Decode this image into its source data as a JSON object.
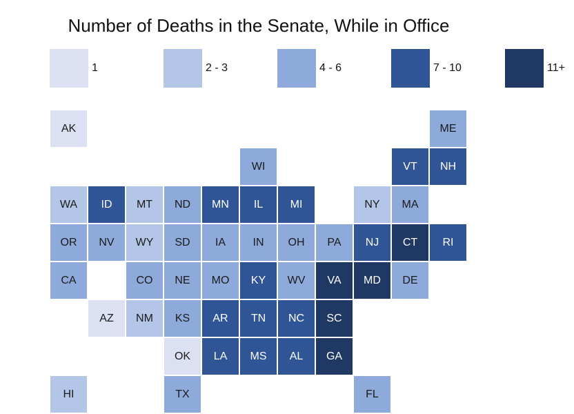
{
  "chart_data": {
    "type": "heatmap",
    "title": "Number of Deaths in the Senate, While in Office",
    "legend": {
      "placement": "top",
      "bins": [
        {
          "label": "1",
          "color": "#dbe1f2"
        },
        {
          "label": "2 - 3",
          "color": "#b4c6e7"
        },
        {
          "label": "4 - 6",
          "color": "#8eaadb"
        },
        {
          "label": "7 - 10",
          "color": "#2f5597"
        },
        {
          "label": "11+",
          "color": "#203864"
        }
      ]
    },
    "states": [
      {
        "abbr": "AK",
        "bin": "1",
        "col": 0,
        "row": 0
      },
      {
        "abbr": "ME",
        "bin": "4 - 6",
        "col": 10,
        "row": 0
      },
      {
        "abbr": "WI",
        "bin": "4 - 6",
        "col": 5,
        "row": 1
      },
      {
        "abbr": "VT",
        "bin": "7 - 10",
        "col": 9,
        "row": 1
      },
      {
        "abbr": "NH",
        "bin": "7 - 10",
        "col": 10,
        "row": 1
      },
      {
        "abbr": "WA",
        "bin": "2 - 3",
        "col": 0,
        "row": 2
      },
      {
        "abbr": "ID",
        "bin": "7 - 10",
        "col": 1,
        "row": 2
      },
      {
        "abbr": "MT",
        "bin": "2 - 3",
        "col": 2,
        "row": 2
      },
      {
        "abbr": "ND",
        "bin": "4 - 6",
        "col": 3,
        "row": 2
      },
      {
        "abbr": "MN",
        "bin": "7 - 10",
        "col": 4,
        "row": 2
      },
      {
        "abbr": "IL",
        "bin": "7 - 10",
        "col": 5,
        "row": 2
      },
      {
        "abbr": "MI",
        "bin": "7 - 10",
        "col": 6,
        "row": 2
      },
      {
        "abbr": "NY",
        "bin": "2 - 3",
        "col": 8,
        "row": 2
      },
      {
        "abbr": "MA",
        "bin": "4 - 6",
        "col": 9,
        "row": 2
      },
      {
        "abbr": "OR",
        "bin": "4 - 6",
        "col": 0,
        "row": 3
      },
      {
        "abbr": "NV",
        "bin": "4 - 6",
        "col": 1,
        "row": 3
      },
      {
        "abbr": "WY",
        "bin": "2 - 3",
        "col": 2,
        "row": 3
      },
      {
        "abbr": "SD",
        "bin": "4 - 6",
        "col": 3,
        "row": 3
      },
      {
        "abbr": "IA",
        "bin": "4 - 6",
        "col": 4,
        "row": 3
      },
      {
        "abbr": "IN",
        "bin": "4 - 6",
        "col": 5,
        "row": 3
      },
      {
        "abbr": "OH",
        "bin": "4 - 6",
        "col": 6,
        "row": 3
      },
      {
        "abbr": "PA",
        "bin": "4 - 6",
        "col": 7,
        "row": 3
      },
      {
        "abbr": "NJ",
        "bin": "7 - 10",
        "col": 8,
        "row": 3
      },
      {
        "abbr": "CT",
        "bin": "11+",
        "col": 9,
        "row": 3
      },
      {
        "abbr": "RI",
        "bin": "7 - 10",
        "col": 10,
        "row": 3
      },
      {
        "abbr": "CA",
        "bin": "4 - 6",
        "col": 0,
        "row": 4
      },
      {
        "abbr": "CO",
        "bin": "4 - 6",
        "col": 2,
        "row": 4
      },
      {
        "abbr": "NE",
        "bin": "4 - 6",
        "col": 3,
        "row": 4
      },
      {
        "abbr": "MO",
        "bin": "4 - 6",
        "col": 4,
        "row": 4
      },
      {
        "abbr": "KY",
        "bin": "7 - 10",
        "col": 5,
        "row": 4
      },
      {
        "abbr": "WV",
        "bin": "4 - 6",
        "col": 6,
        "row": 4
      },
      {
        "abbr": "VA",
        "bin": "11+",
        "col": 7,
        "row": 4
      },
      {
        "abbr": "MD",
        "bin": "11+",
        "col": 8,
        "row": 4
      },
      {
        "abbr": "DE",
        "bin": "4 - 6",
        "col": 9,
        "row": 4
      },
      {
        "abbr": "AZ",
        "bin": "1",
        "col": 1,
        "row": 5
      },
      {
        "abbr": "NM",
        "bin": "2 - 3",
        "col": 2,
        "row": 5
      },
      {
        "abbr": "KS",
        "bin": "4 - 6",
        "col": 3,
        "row": 5
      },
      {
        "abbr": "AR",
        "bin": "7 - 10",
        "col": 4,
        "row": 5
      },
      {
        "abbr": "TN",
        "bin": "7 - 10",
        "col": 5,
        "row": 5
      },
      {
        "abbr": "NC",
        "bin": "7 - 10",
        "col": 6,
        "row": 5
      },
      {
        "abbr": "SC",
        "bin": "11+",
        "col": 7,
        "row": 5
      },
      {
        "abbr": "OK",
        "bin": "1",
        "col": 3,
        "row": 6
      },
      {
        "abbr": "LA",
        "bin": "7 - 10",
        "col": 4,
        "row": 6
      },
      {
        "abbr": "MS",
        "bin": "7 - 10",
        "col": 5,
        "row": 6
      },
      {
        "abbr": "AL",
        "bin": "7 - 10",
        "col": 6,
        "row": 6
      },
      {
        "abbr": "GA",
        "bin": "11+",
        "col": 7,
        "row": 6
      },
      {
        "abbr": "HI",
        "bin": "2 - 3",
        "col": 0,
        "row": 7
      },
      {
        "abbr": "TX",
        "bin": "4 - 6",
        "col": 3,
        "row": 7
      },
      {
        "abbr": "FL",
        "bin": "4 - 6",
        "col": 8,
        "row": 7
      }
    ]
  }
}
